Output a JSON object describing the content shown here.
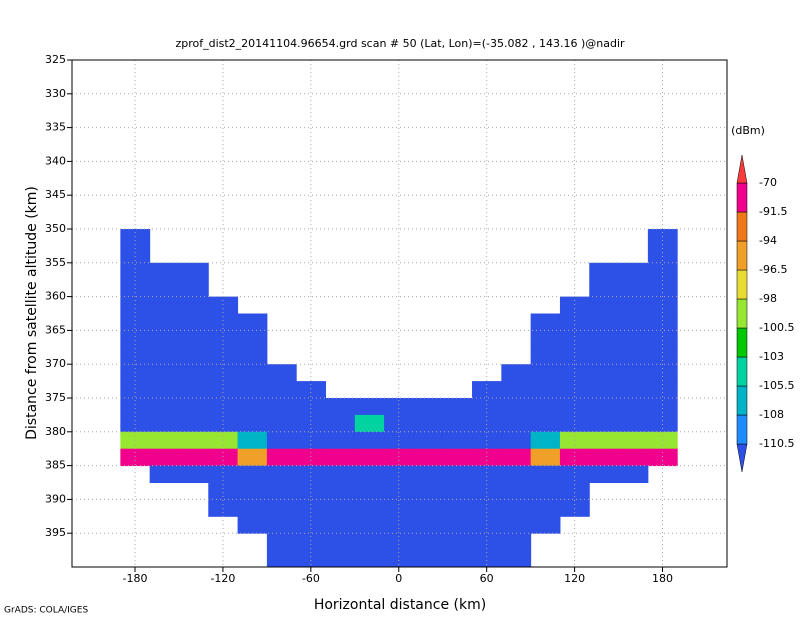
{
  "chart_data": {
    "type": "heatmap",
    "title": "zprof_dist2_20141104.96654.grd  scan # 50  (Lat, Lon)=(-35.082 , 143.16 )@nadir",
    "xlabel": "Horizontal distance (km)",
    "ylabel": "Distance from satellite altitude (km)",
    "footnote": "GrADS: COLA/IGES",
    "colorbar_title": "(dBm)",
    "xlim": [
      -223,
      224
    ],
    "ylim": [
      325,
      400
    ],
    "y_inverted": true,
    "xticks": [
      -180,
      -120,
      -60,
      0,
      60,
      120,
      180
    ],
    "yticks": [
      325,
      330,
      335,
      340,
      345,
      350,
      355,
      360,
      365,
      370,
      375,
      380,
      385,
      390,
      395
    ],
    "grid": true,
    "levels": [
      -110.5,
      -108,
      -105.5,
      -103,
      -100.5,
      -98,
      -96.5,
      -94,
      -91.5,
      -70
    ],
    "colors": [
      "#2d50e6",
      "#1e8cff",
      "#00b4c8",
      "#00d2a0",
      "#00c800",
      "#96e632",
      "#e6dc32",
      "#f0a028",
      "#f07818",
      "#f0008c",
      "#fa3c3c"
    ],
    "x": [
      -180,
      -160,
      -140,
      -120,
      -100,
      -80,
      -60,
      -40,
      -20,
      0,
      20,
      40,
      60,
      80,
      100,
      120,
      140,
      160,
      180
    ],
    "y": [
      351.25,
      353.75,
      356.25,
      358.75,
      361.25,
      363.75,
      366.25,
      368.75,
      371.25,
      373.75,
      376.25,
      378.75,
      381.25,
      383.75,
      386.25,
      388.75,
      391.25,
      393.75,
      396.25,
      398.75
    ],
    "values": [
      [
        -112,
        null,
        null,
        null,
        null,
        null,
        null,
        null,
        null,
        null,
        null,
        null,
        null,
        null,
        null,
        null,
        null,
        null,
        -112
      ],
      [
        -112,
        null,
        null,
        null,
        null,
        null,
        null,
        null,
        null,
        null,
        null,
        null,
        null,
        null,
        null,
        null,
        null,
        null,
        -112
      ],
      [
        -112,
        -112,
        -112,
        null,
        null,
        null,
        null,
        null,
        null,
        null,
        null,
        null,
        null,
        null,
        null,
        null,
        -112,
        -112,
        -112
      ],
      [
        -112,
        -112,
        -112,
        null,
        null,
        null,
        null,
        null,
        null,
        null,
        null,
        null,
        null,
        null,
        null,
        null,
        -112,
        -112,
        -112
      ],
      [
        -112,
        -112,
        -112,
        -112,
        null,
        null,
        null,
        null,
        null,
        null,
        null,
        null,
        null,
        null,
        null,
        -112,
        -112,
        -112,
        -112
      ],
      [
        -112,
        -112,
        -112,
        -112,
        -112,
        null,
        null,
        null,
        null,
        null,
        null,
        null,
        null,
        null,
        -112,
        -112,
        -112,
        -112,
        -112
      ],
      [
        -112,
        -112,
        -112,
        -112,
        -112,
        null,
        null,
        null,
        null,
        null,
        null,
        null,
        null,
        null,
        -112,
        -112,
        -112,
        -112,
        -112
      ],
      [
        -112,
        -112,
        -112,
        -112,
        -112,
        null,
        null,
        null,
        null,
        null,
        null,
        null,
        null,
        null,
        -112,
        -112,
        -112,
        -112,
        -112
      ],
      [
        -112,
        -112,
        -112,
        -112,
        -112,
        -112,
        null,
        null,
        null,
        null,
        null,
        null,
        null,
        -112,
        -112,
        -112,
        -112,
        -112,
        -112
      ],
      [
        -112,
        -112,
        -112,
        -112,
        -112,
        -112,
        -112,
        null,
        null,
        null,
        null,
        null,
        -112,
        -112,
        -112,
        -112,
        -112,
        -112,
        -112
      ],
      [
        -112,
        -112,
        -112,
        -112,
        -112,
        -112,
        -112,
        -112,
        -112,
        -112,
        -112,
        -112,
        -112,
        -112,
        -112,
        -112,
        -112,
        -112,
        -112
      ],
      [
        -112,
        -112,
        -112,
        -112,
        -112,
        -112,
        -112,
        -112,
        -104,
        -112,
        -112,
        -112,
        -112,
        -112,
        -112,
        -112,
        -112,
        -112,
        -112
      ],
      [
        -99,
        -99,
        -99,
        -99,
        -106.5,
        -112,
        -112,
        -112,
        -112,
        -112,
        -112,
        -112,
        -112,
        -112,
        -106.5,
        -99,
        -99,
        -99,
        -99
      ],
      [
        -85,
        -85,
        -85,
        -85,
        -95,
        -85,
        -85,
        -85,
        -85,
        -85,
        -85,
        -85,
        -85,
        -85,
        -95,
        -85,
        -85,
        -85,
        -85
      ],
      [
        null,
        -112,
        -112,
        -112,
        -112,
        -112,
        -112,
        -112,
        -112,
        -112,
        -112,
        -112,
        -112,
        -112,
        -112,
        -112,
        -112,
        -112,
        null
      ],
      [
        null,
        null,
        null,
        -112,
        -112,
        -112,
        -112,
        -112,
        -112,
        -112,
        -112,
        -112,
        -112,
        -112,
        -112,
        -112,
        null,
        null,
        null
      ],
      [
        null,
        null,
        null,
        -112,
        -112,
        -112,
        -112,
        -112,
        -112,
        -112,
        -112,
        -112,
        -112,
        -112,
        -112,
        -112,
        null,
        null,
        null
      ],
      [
        null,
        null,
        null,
        null,
        -112,
        -112,
        -112,
        -112,
        -112,
        -112,
        -112,
        -112,
        -112,
        -112,
        -112,
        null,
        null,
        null,
        null
      ],
      [
        null,
        null,
        null,
        null,
        null,
        -112,
        -112,
        -112,
        -112,
        -112,
        -112,
        -112,
        -112,
        -112,
        null,
        null,
        null,
        null,
        null
      ],
      [
        null,
        null,
        null,
        null,
        null,
        -112,
        -112,
        -112,
        -112,
        -112,
        -112,
        -112,
        -112,
        -112,
        null,
        null,
        null,
        null,
        null
      ]
    ]
  }
}
